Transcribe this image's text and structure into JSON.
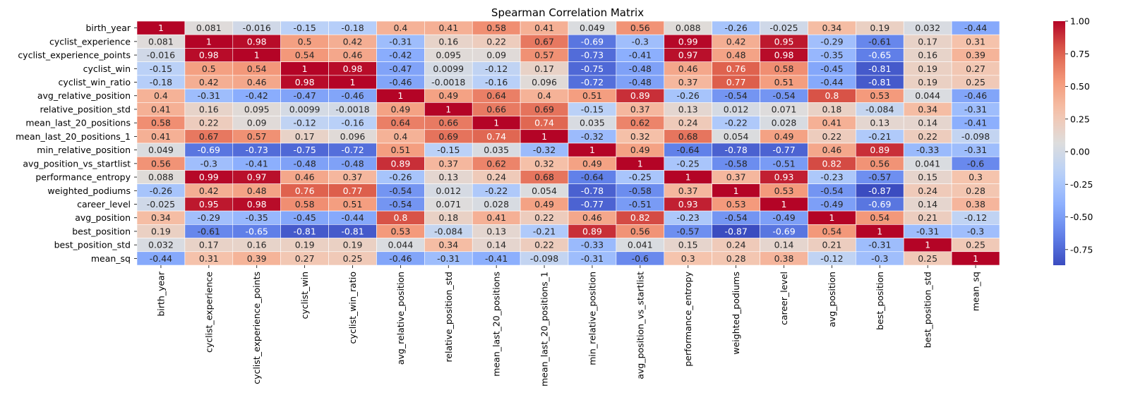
{
  "chart_data": {
    "type": "heatmap",
    "title": "Spearman Correlation Matrix",
    "labels": [
      "birth_year",
      "cyclist_experience",
      "cyclist_experience_points",
      "cyclist_win",
      "cyclist_win_ratio",
      "avg_relative_position",
      "relative_position_std",
      "mean_last_20_positions",
      "mean_last_20_positions_1",
      "min_relative_position",
      "avg_position_vs_startlist",
      "performance_entropy",
      "weighted_podiums",
      "career_level",
      "avg_position",
      "best_position",
      "best_position_std",
      "mean_sq"
    ],
    "matrix": [
      [
        "1",
        "0.081",
        "-0.016",
        "-0.15",
        "-0.18",
        "0.4",
        "0.41",
        "0.58",
        "0.41",
        "0.049",
        "0.56",
        "0.088",
        "-0.26",
        "-0.025",
        "0.34",
        "0.19",
        "0.032",
        "-0.44"
      ],
      [
        "0.081",
        "1",
        "0.98",
        "0.5",
        "0.42",
        "-0.31",
        "0.16",
        "0.22",
        "0.67",
        "-0.69",
        "-0.3",
        "0.99",
        "0.42",
        "0.95",
        "-0.29",
        "-0.61",
        "0.17",
        "0.31"
      ],
      [
        "-0.016",
        "0.98",
        "1",
        "0.54",
        "0.46",
        "-0.42",
        "0.095",
        "0.09",
        "0.57",
        "-0.73",
        "-0.41",
        "0.97",
        "0.48",
        "0.98",
        "-0.35",
        "-0.65",
        "0.16",
        "0.39"
      ],
      [
        "-0.15",
        "0.5",
        "0.54",
        "1",
        "0.98",
        "-0.47",
        "0.0099",
        "-0.12",
        "0.17",
        "-0.75",
        "-0.48",
        "0.46",
        "0.76",
        "0.58",
        "-0.45",
        "-0.81",
        "0.19",
        "0.27"
      ],
      [
        "-0.18",
        "0.42",
        "0.46",
        "0.98",
        "1",
        "-0.46",
        "-0.0018",
        "-0.16",
        "0.096",
        "-0.72",
        "-0.48",
        "0.37",
        "0.77",
        "0.51",
        "-0.44",
        "-0.81",
        "0.19",
        "0.25"
      ],
      [
        "0.4",
        "-0.31",
        "-0.42",
        "-0.47",
        "-0.46",
        "1",
        "0.49",
        "0.64",
        "0.4",
        "0.51",
        "0.89",
        "-0.26",
        "-0.54",
        "-0.54",
        "0.8",
        "0.53",
        "0.044",
        "-0.46"
      ],
      [
        "0.41",
        "0.16",
        "0.095",
        "0.0099",
        "-0.0018",
        "0.49",
        "1",
        "0.66",
        "0.69",
        "-0.15",
        "0.37",
        "0.13",
        "0.012",
        "0.071",
        "0.18",
        "-0.084",
        "0.34",
        "-0.31"
      ],
      [
        "0.58",
        "0.22",
        "0.09",
        "-0.12",
        "-0.16",
        "0.64",
        "0.66",
        "1",
        "0.74",
        "0.035",
        "0.62",
        "0.24",
        "-0.22",
        "0.028",
        "0.41",
        "0.13",
        "0.14",
        "-0.41"
      ],
      [
        "0.41",
        "0.67",
        "0.57",
        "0.17",
        "0.096",
        "0.4",
        "0.69",
        "0.74",
        "1",
        "-0.32",
        "0.32",
        "0.68",
        "0.054",
        "0.49",
        "0.22",
        "-0.21",
        "0.22",
        "-0.098"
      ],
      [
        "0.049",
        "-0.69",
        "-0.73",
        "-0.75",
        "-0.72",
        "0.51",
        "-0.15",
        "0.035",
        "-0.32",
        "1",
        "0.49",
        "-0.64",
        "-0.78",
        "-0.77",
        "0.46",
        "0.89",
        "-0.33",
        "-0.31"
      ],
      [
        "0.56",
        "-0.3",
        "-0.41",
        "-0.48",
        "-0.48",
        "0.89",
        "0.37",
        "0.62",
        "0.32",
        "0.49",
        "1",
        "-0.25",
        "-0.58",
        "-0.51",
        "0.82",
        "0.56",
        "0.041",
        "-0.6"
      ],
      [
        "0.088",
        "0.99",
        "0.97",
        "0.46",
        "0.37",
        "-0.26",
        "0.13",
        "0.24",
        "0.68",
        "-0.64",
        "-0.25",
        "1",
        "0.37",
        "0.93",
        "-0.23",
        "-0.57",
        "0.15",
        "0.3"
      ],
      [
        "-0.26",
        "0.42",
        "0.48",
        "0.76",
        "0.77",
        "-0.54",
        "0.012",
        "-0.22",
        "0.054",
        "-0.78",
        "-0.58",
        "0.37",
        "1",
        "0.53",
        "-0.54",
        "-0.87",
        "0.24",
        "0.28"
      ],
      [
        "-0.025",
        "0.95",
        "0.98",
        "0.58",
        "0.51",
        "-0.54",
        "0.071",
        "0.028",
        "0.49",
        "-0.77",
        "-0.51",
        "0.93",
        "0.53",
        "1",
        "-0.49",
        "-0.69",
        "0.14",
        "0.38"
      ],
      [
        "0.34",
        "-0.29",
        "-0.35",
        "-0.45",
        "-0.44",
        "0.8",
        "0.18",
        "0.41",
        "0.22",
        "0.46",
        "0.82",
        "-0.23",
        "-0.54",
        "-0.49",
        "1",
        "0.54",
        "0.21",
        "-0.12"
      ],
      [
        "0.19",
        "-0.61",
        "-0.65",
        "-0.81",
        "-0.81",
        "0.53",
        "-0.084",
        "0.13",
        "-0.21",
        "0.89",
        "0.56",
        "-0.57",
        "-0.87",
        "-0.69",
        "0.54",
        "1",
        "-0.31",
        "-0.3"
      ],
      [
        "0.032",
        "0.17",
        "0.16",
        "0.19",
        "0.19",
        "0.044",
        "0.34",
        "0.14",
        "0.22",
        "-0.33",
        "0.041",
        "0.15",
        "0.24",
        "0.14",
        "0.21",
        "-0.31",
        "1",
        "0.25"
      ],
      [
        "-0.44",
        "0.31",
        "0.39",
        "0.27",
        "0.25",
        "-0.46",
        "-0.31",
        "-0.41",
        "-0.098",
        "-0.31",
        "-0.6",
        "0.3",
        "0.28",
        "0.38",
        "-0.12",
        "-0.3",
        "0.25",
        "1"
      ]
    ],
    "colorbar": {
      "colormap": "coolwarm",
      "vmin": -0.87,
      "vmax": 1.0,
      "ticks": [
        "1.00",
        "0.75",
        "0.50",
        "0.25",
        "0.00",
        "-0.25",
        "-0.50",
        "-0.75"
      ]
    }
  }
}
